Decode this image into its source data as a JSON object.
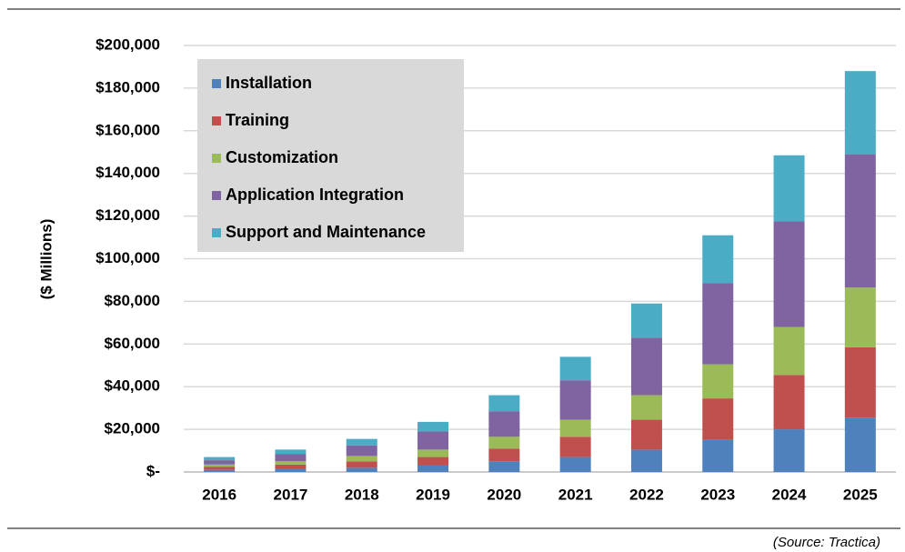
{
  "chart_data": {
    "type": "stacked_bar",
    "y_axis_label": "($ Millions)",
    "source": "(Source: Tractica)",
    "categories": [
      "2016",
      "2017",
      "2018",
      "2019",
      "2020",
      "2021",
      "2022",
      "2023",
      "2024",
      "2025"
    ],
    "series": [
      {
        "name": "Installation",
        "color": "#4f81bd",
        "values": [
          1000,
          1500,
          2000,
          3000,
          5000,
          7000,
          10500,
          15000,
          20000,
          25500
        ]
      },
      {
        "name": "Training",
        "color": "#c0504d",
        "values": [
          1500,
          2000,
          3000,
          4000,
          6000,
          9500,
          14000,
          19500,
          25500,
          33000
        ]
      },
      {
        "name": "Customization",
        "color": "#9bbb59",
        "values": [
          1000,
          1500,
          2500,
          3500,
          5500,
          8000,
          11500,
          16000,
          22500,
          28000
        ]
      },
      {
        "name": "Application Integration",
        "color": "#8064a2",
        "values": [
          2000,
          3500,
          5000,
          8500,
          12000,
          18500,
          27000,
          38000,
          49500,
          62500
        ]
      },
      {
        "name": "Support and Maintenance",
        "color": "#4bacc6",
        "values": [
          1500,
          2000,
          3000,
          4500,
          7500,
          11000,
          16000,
          22500,
          31000,
          39000
        ]
      }
    ],
    "ylim": [
      0,
      200000
    ],
    "yticks": [
      {
        "value": 0,
        "label": "$-"
      },
      {
        "value": 20000,
        "label": "$20,000"
      },
      {
        "value": 40000,
        "label": "$40,000"
      },
      {
        "value": 60000,
        "label": "$60,000"
      },
      {
        "value": 80000,
        "label": "$80,000"
      },
      {
        "value": 100000,
        "label": "$100,000"
      },
      {
        "value": 120000,
        "label": "$120,000"
      },
      {
        "value": 140000,
        "label": "$140,000"
      },
      {
        "value": 160000,
        "label": "$160,000"
      },
      {
        "value": 180000,
        "label": "$180,000"
      },
      {
        "value": 200000,
        "label": "$200,000"
      }
    ],
    "grid": true,
    "legend": "upper-left"
  }
}
